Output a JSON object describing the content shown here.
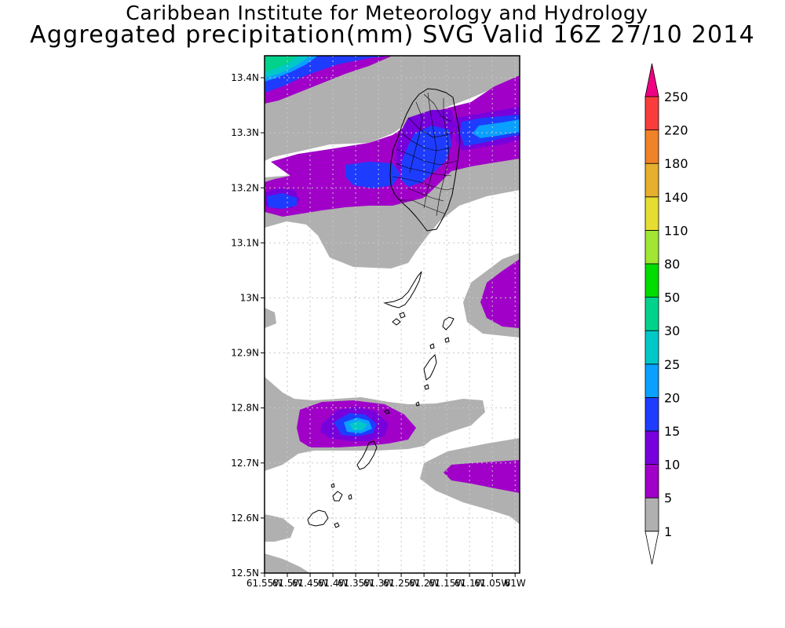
{
  "header": {
    "organization": "Caribbean Institute for Meteorology and Hydrology",
    "product": "Aggregated precipitation(mm) SVG Valid 16Z 27/10 2014"
  },
  "map": {
    "lat_ticks": [
      "12.5N",
      "12.6N",
      "12.7N",
      "12.8N",
      "12.9N",
      "13N",
      "13.1N",
      "13.2N",
      "13.3N",
      "13.4N"
    ],
    "lon_ticks": [
      "61.55W",
      "61.5W",
      "61.45W",
      "61.4W",
      "61.35W",
      "61.3W",
      "61.25W",
      "61.2W",
      "61.15W",
      "61.1W",
      "61.05W",
      "61W"
    ],
    "lat_range": [
      12.5,
      13.44
    ],
    "lon_range": [
      -61.55,
      -60.99
    ]
  },
  "legend": {
    "labels": [
      "1",
      "5",
      "10",
      "15",
      "20",
      "25",
      "30",
      "50",
      "80",
      "110",
      "140",
      "180",
      "220",
      "250"
    ],
    "colors": {
      "c_1_5": "#b0b0b0",
      "c_5_10": "#a000c8",
      "c_10_15": "#7800dc",
      "c_15_20": "#1e3cff",
      "c_20_25": "#0aa0ff",
      "c_25_30": "#00c8c8",
      "c_30_50": "#00d28c",
      "c_50_80": "#00dc00",
      "c_80_110": "#a0e632",
      "c_110_140": "#e6dc32",
      "c_140_180": "#e6af2d",
      "c_180_220": "#f08228",
      "c_220_250": "#fa3c3c",
      "c_250_plus": "#f00082"
    }
  }
}
